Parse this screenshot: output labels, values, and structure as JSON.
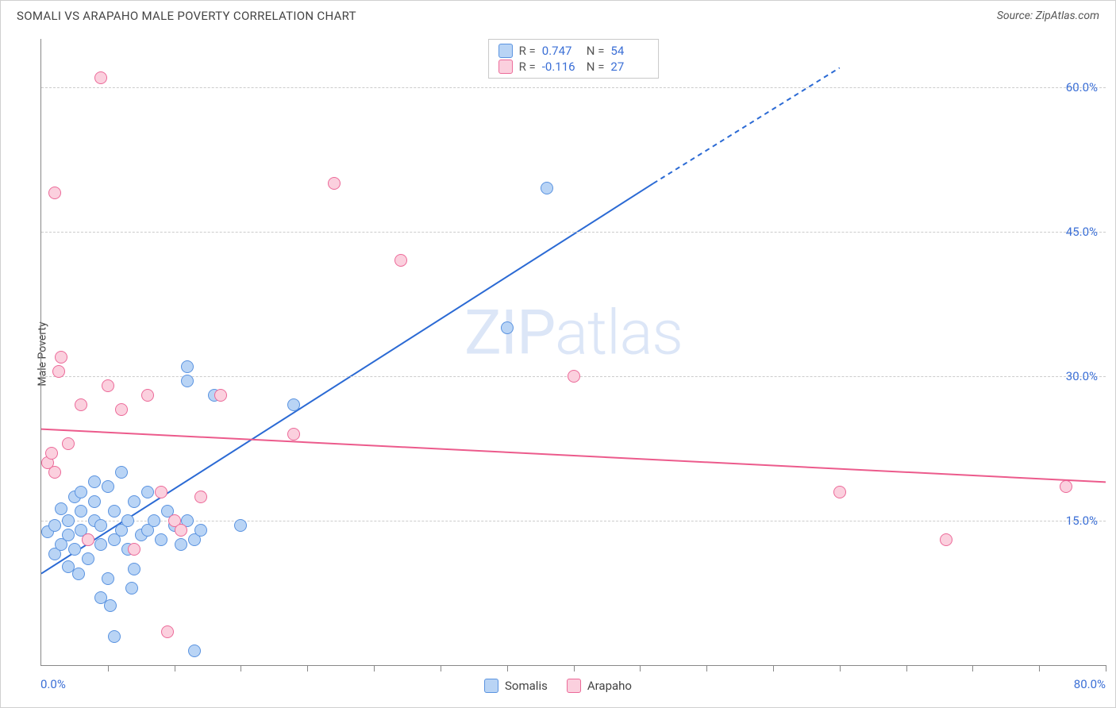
{
  "title": "SOMALI VS ARAPAHO MALE POVERTY CORRELATION CHART",
  "source": "Source: ZipAtlas.com",
  "y_axis_label": "Male Poverty",
  "watermark_a": "ZIP",
  "watermark_b": "atlas",
  "chart": {
    "type": "scatter",
    "xlim": [
      0,
      80
    ],
    "ylim": [
      0,
      65
    ],
    "x_start_label": "0.0%",
    "x_end_label": "80.0%",
    "y_ticks": [
      15,
      30,
      45,
      60
    ],
    "y_tick_labels": [
      "15.0%",
      "30.0%",
      "45.0%",
      "60.0%"
    ],
    "x_minor_ticks": [
      5,
      10,
      15,
      20,
      25,
      30,
      35,
      40,
      45,
      50,
      55,
      60,
      65,
      70,
      75,
      80
    ],
    "background_color": "#ffffff",
    "grid_color": "#cccccc",
    "axis_color": "#888888",
    "tick_label_color": "#3b6fd6",
    "point_radius": 8,
    "series": [
      {
        "name": "Somalis",
        "fill": "#b9d4f5",
        "stroke": "#5a93e0",
        "swatch_fill": "#b9d4f5",
        "swatch_stroke": "#5a93e0",
        "R": "0.747",
        "N": "54",
        "trend": {
          "x1": 0,
          "y1": 9.5,
          "x2": 46,
          "y2": 50,
          "x2d": 60,
          "y2d": 62,
          "color": "#2b6ad4",
          "width": 2
        },
        "points": [
          [
            0.5,
            13.8
          ],
          [
            1,
            11.5
          ],
          [
            1,
            14.5
          ],
          [
            1.5,
            16.2
          ],
          [
            1.5,
            12.5
          ],
          [
            2,
            10.2
          ],
          [
            2,
            15
          ],
          [
            2,
            13.5
          ],
          [
            2.5,
            17.5
          ],
          [
            2.5,
            12
          ],
          [
            3,
            16
          ],
          [
            3,
            14
          ],
          [
            3,
            18
          ],
          [
            3.5,
            11
          ],
          [
            3.5,
            13
          ],
          [
            4,
            15
          ],
          [
            4,
            17
          ],
          [
            4,
            19
          ],
          [
            4.5,
            12.5
          ],
          [
            4.5,
            14.5
          ],
          [
            5,
            18.5
          ],
          [
            5,
            9
          ],
          [
            5.5,
            13
          ],
          [
            5.5,
            16
          ],
          [
            6,
            14
          ],
          [
            6,
            20
          ],
          [
            6.5,
            12
          ],
          [
            6.5,
            15
          ],
          [
            7,
            17
          ],
          [
            7,
            10
          ],
          [
            7.5,
            13.5
          ],
          [
            8,
            14
          ],
          [
            8,
            18
          ],
          [
            8.5,
            15
          ],
          [
            9,
            13
          ],
          [
            9.5,
            16
          ],
          [
            10,
            14.5
          ],
          [
            10.5,
            12.5
          ],
          [
            11,
            15
          ],
          [
            11.5,
            13
          ],
          [
            4.5,
            7
          ],
          [
            5.5,
            3
          ],
          [
            11,
            29.5
          ],
          [
            11,
            31
          ],
          [
            11.5,
            1.5
          ],
          [
            12,
            14
          ],
          [
            13,
            28
          ],
          [
            15,
            14.5
          ],
          [
            19,
            27
          ],
          [
            35,
            35
          ],
          [
            38,
            49.5
          ],
          [
            5.2,
            6.2
          ],
          [
            2.8,
            9.5
          ],
          [
            6.8,
            8
          ]
        ]
      },
      {
        "name": "Arapaho",
        "fill": "#fbd0de",
        "stroke": "#ec6a99",
        "swatch_fill": "#fbd0de",
        "swatch_stroke": "#ec6a99",
        "R": "-0.116",
        "N": "27",
        "trend": {
          "x1": 0,
          "y1": 24.5,
          "x2": 80,
          "y2": 19,
          "color": "#ec5b8c",
          "width": 2
        },
        "points": [
          [
            0.5,
            21
          ],
          [
            0.8,
            22
          ],
          [
            1,
            20
          ],
          [
            1,
            49
          ],
          [
            1.3,
            30.5
          ],
          [
            1.5,
            32
          ],
          [
            2,
            23
          ],
          [
            3,
            27
          ],
          [
            3.5,
            13
          ],
          [
            4.5,
            61
          ],
          [
            5,
            29
          ],
          [
            6,
            26.5
          ],
          [
            7,
            12
          ],
          [
            8,
            28
          ],
          [
            9,
            18
          ],
          [
            9.5,
            3.5
          ],
          [
            10,
            15
          ],
          [
            10.5,
            14
          ],
          [
            12,
            17.5
          ],
          [
            13.5,
            28
          ],
          [
            19,
            24
          ],
          [
            22,
            50
          ],
          [
            27,
            42
          ],
          [
            40,
            30
          ],
          [
            60,
            18
          ],
          [
            68,
            13
          ],
          [
            77,
            18.5
          ]
        ]
      }
    ]
  },
  "stats_labels": {
    "R": "R =",
    "N": "N ="
  },
  "legend": [
    "Somalis",
    "Arapaho"
  ]
}
